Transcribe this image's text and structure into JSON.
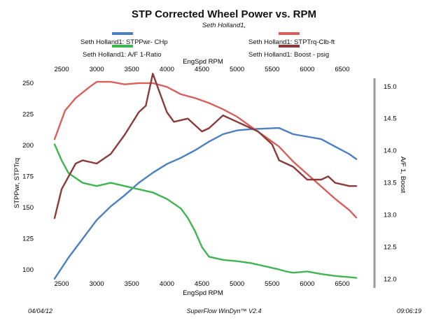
{
  "title": "STP Corrected Wheel Power vs. RPM",
  "subtitle": "Seth Holland1,",
  "legend": [
    {
      "label": "Seth Holland1: STPPwr- CHp",
      "color": "#4a7fc1"
    },
    {
      "label": "Seth Holland1: STPTrq-Clb-ft",
      "color": "#d9605a"
    },
    {
      "label": "Seth Holland1: A/F 1-Ratio",
      "color": "#3fb552"
    },
    {
      "label": "Seth Holland1: Boost - psig",
      "color": "#8b3a3a"
    }
  ],
  "footer": {
    "date": "04/04/12",
    "software": "SuperFlow WinDyn™ V2.4",
    "time": "09:06:19"
  },
  "chart_data": {
    "type": "line",
    "xlabel_top": "EngSpd  RPM",
    "xlabel_bottom": "EngSpd  RPM",
    "ylabel_left": "STPPwr, STPTrq",
    "ylabel_right": "A/F 1, Boost",
    "xlim": [
      2400,
      6750
    ],
    "ylim_left": [
      90,
      255
    ],
    "ylim_right": [
      11.95,
      15.15
    ],
    "x_ticks": [
      2500,
      3000,
      3500,
      4000,
      4500,
      5000,
      5500,
      6000,
      6500
    ],
    "y_left_ticks": [
      100,
      125,
      150,
      175,
      200,
      225,
      250
    ],
    "y_right_ticks": [
      12.0,
      12.5,
      13.0,
      13.5,
      14.0,
      14.5,
      15.0
    ],
    "series": [
      {
        "name": "Seth Holland1: STPPwr- CHp",
        "axis": "left",
        "color": "#4a7fc1",
        "points": [
          [
            2400,
            93
          ],
          [
            2600,
            110
          ],
          [
            2800,
            125
          ],
          [
            3000,
            140
          ],
          [
            3200,
            151
          ],
          [
            3400,
            160
          ],
          [
            3600,
            170
          ],
          [
            3800,
            178
          ],
          [
            4000,
            185
          ],
          [
            4200,
            190
          ],
          [
            4400,
            196
          ],
          [
            4600,
            203
          ],
          [
            4800,
            209
          ],
          [
            5000,
            212
          ],
          [
            5200,
            213
          ],
          [
            5400,
            213.5
          ],
          [
            5600,
            214
          ],
          [
            5800,
            209
          ],
          [
            6000,
            207
          ],
          [
            6200,
            205
          ],
          [
            6400,
            199
          ],
          [
            6600,
            193
          ],
          [
            6700,
            189
          ]
        ]
      },
      {
        "name": "Seth Holland1: STPTrq-Clb-ft",
        "axis": "left",
        "color": "#d9605a",
        "points": [
          [
            2400,
            205
          ],
          [
            2550,
            228
          ],
          [
            2700,
            238
          ],
          [
            2900,
            247
          ],
          [
            3000,
            251
          ],
          [
            3200,
            251
          ],
          [
            3400,
            249
          ],
          [
            3600,
            250
          ],
          [
            3800,
            250
          ],
          [
            4000,
            247
          ],
          [
            4200,
            241
          ],
          [
            4400,
            238
          ],
          [
            4600,
            234
          ],
          [
            4800,
            229
          ],
          [
            5000,
            223
          ],
          [
            5200,
            215
          ],
          [
            5400,
            207
          ],
          [
            5600,
            199
          ],
          [
            5800,
            187
          ],
          [
            6000,
            177
          ],
          [
            6200,
            167
          ],
          [
            6400,
            157
          ],
          [
            6600,
            148
          ],
          [
            6700,
            142
          ]
        ]
      },
      {
        "name": "Seth Holland1: A/F 1-Ratio",
        "axis": "right",
        "color": "#3fb552",
        "points": [
          [
            2400,
            14.1
          ],
          [
            2500,
            13.85
          ],
          [
            2600,
            13.65
          ],
          [
            2800,
            13.5
          ],
          [
            3000,
            13.45
          ],
          [
            3200,
            13.5
          ],
          [
            3400,
            13.45
          ],
          [
            3600,
            13.4
          ],
          [
            3800,
            13.35
          ],
          [
            4000,
            13.25
          ],
          [
            4200,
            13.1
          ],
          [
            4300,
            12.95
          ],
          [
            4400,
            12.75
          ],
          [
            4500,
            12.5
          ],
          [
            4600,
            12.35
          ],
          [
            4800,
            12.3
          ],
          [
            5000,
            12.28
          ],
          [
            5200,
            12.25
          ],
          [
            5400,
            12.2
          ],
          [
            5600,
            12.15
          ],
          [
            5700,
            12.12
          ],
          [
            5800,
            12.1
          ],
          [
            6000,
            12.12
          ],
          [
            6200,
            12.08
          ],
          [
            6400,
            12.05
          ],
          [
            6600,
            12.03
          ],
          [
            6700,
            12.02
          ]
        ]
      },
      {
        "name": "Seth Holland1: Boost - psig",
        "axis": "right",
        "color": "#8b3a3a",
        "points": [
          [
            2400,
            12.95
          ],
          [
            2500,
            13.4
          ],
          [
            2700,
            13.8
          ],
          [
            2800,
            13.85
          ],
          [
            3000,
            13.8
          ],
          [
            3200,
            13.95
          ],
          [
            3400,
            14.25
          ],
          [
            3600,
            14.6
          ],
          [
            3700,
            14.7
          ],
          [
            3800,
            15.2
          ],
          [
            3900,
            14.9
          ],
          [
            4000,
            14.6
          ],
          [
            4100,
            14.45
          ],
          [
            4300,
            14.5
          ],
          [
            4500,
            14.3
          ],
          [
            4600,
            14.35
          ],
          [
            4800,
            14.55
          ],
          [
            5000,
            14.45
          ],
          [
            5100,
            14.4
          ],
          [
            5300,
            14.3
          ],
          [
            5500,
            14.1
          ],
          [
            5600,
            13.85
          ],
          [
            5800,
            13.75
          ],
          [
            6000,
            13.55
          ],
          [
            6200,
            13.55
          ],
          [
            6300,
            13.6
          ],
          [
            6400,
            13.5
          ],
          [
            6600,
            13.45
          ],
          [
            6700,
            13.45
          ]
        ]
      }
    ]
  }
}
